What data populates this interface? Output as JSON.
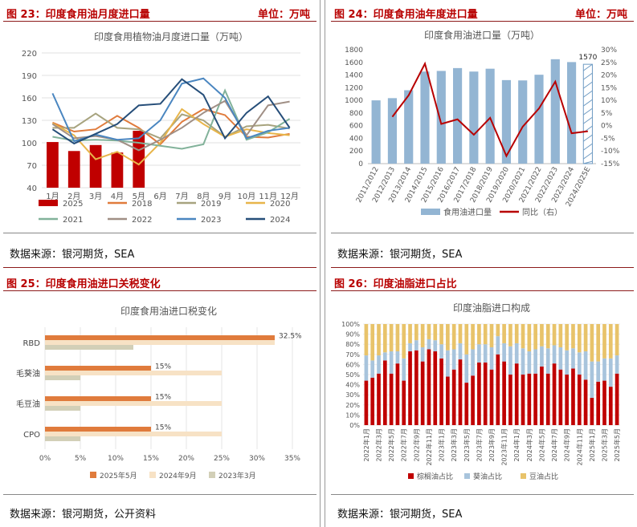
{
  "panels": {
    "p1": {
      "title": "图 23：印度食用油月度进口量",
      "unit": "单位：万吨",
      "source": "数据来源：银河期货，SEA"
    },
    "p2": {
      "title": "图 24：印度食用油年度进口量",
      "unit": "单位：万吨",
      "source": "数据来源：银河期货，SEA"
    },
    "p3": {
      "title": "图 25：印度食用油进口关税变化",
      "source": "数据来源：银河期货，公开资料"
    },
    "p4": {
      "title": "图 26：印度油脂进口占比",
      "source": "数据来源：银河期货，SEA"
    }
  },
  "colors": {
    "accent": "#b80000",
    "border": "#8c1a1a"
  },
  "chart_data": [
    {
      "type": "line",
      "title": "印度食用植物油月度进口量（万吨）",
      "categories": [
        "1月",
        "2月",
        "3月",
        "4月",
        "5月",
        "6月",
        "7月",
        "8月",
        "9月",
        "10月",
        "11月",
        "12月"
      ],
      "ylim": [
        40,
        220
      ],
      "yticks": [
        40,
        70,
        100,
        130,
        160,
        190,
        220
      ],
      "bar_series": {
        "name": "2025",
        "color": "#c00000",
        "values": [
          101,
          89,
          97,
          87,
          116
        ]
      },
      "series": [
        {
          "name": "2018",
          "color": "#e07b3c",
          "values": [
            127,
            115,
            118,
            136,
            120,
            98,
            128,
            145,
            137,
            108,
            107,
            112
          ]
        },
        {
          "name": "2019",
          "color": "#a7a37e",
          "values": [
            120,
            120,
            139,
            120,
            118,
            106,
            138,
            130,
            108,
            122,
            124,
            119
          ]
        },
        {
          "name": "2020",
          "color": "#e8b54a",
          "values": [
            126,
            110,
            78,
            88,
            71,
            100,
            145,
            125,
            108,
            118,
            113,
            110
          ]
        },
        {
          "name": "2021",
          "color": "#82b29a",
          "values": [
            108,
            103,
            104,
            103,
            100,
            96,
            92,
            98,
            170,
            104,
            114,
            132
          ]
        },
        {
          "name": "2022",
          "color": "#a08f85",
          "values": [
            125,
            106,
            109,
            104,
            90,
            104,
            120,
            140,
            156,
            110,
            150,
            155
          ]
        },
        {
          "name": "2023",
          "color": "#4a86c0",
          "values": [
            166,
            102,
            111,
            104,
            106,
            130,
            179,
            186,
            160,
            106,
            116,
            120
          ]
        },
        {
          "name": "2024",
          "color": "#264e79",
          "values": [
            118,
            99,
            112,
            125,
            150,
            152,
            185,
            164,
            106,
            140,
            162,
            120
          ]
        }
      ],
      "legend": [
        "2025",
        "2018",
        "2019",
        "2020",
        "2021",
        "2022",
        "2023",
        "2024"
      ]
    },
    {
      "type": "bar",
      "title": "印度食用油进口量（万吨）",
      "categories": [
        "2011/2012",
        "2012/2013",
        "2013/2014",
        "2014/2015",
        "2015/2016",
        "2016/2017",
        "2017/2018",
        "2018/2019",
        "2019/2020",
        "2020/2021",
        "2021/2022",
        "2022/2023",
        "2023/2024",
        "2024/2025E"
      ],
      "values": [
        1000,
        1035,
        1160,
        1455,
        1465,
        1510,
        1455,
        1500,
        1320,
        1315,
        1405,
        1650,
        1605,
        1570
      ],
      "bar_color": "#93b5d3",
      "ylim": [
        0,
        1800
      ],
      "yticks": [
        0,
        200,
        400,
        600,
        800,
        1000,
        1200,
        1400,
        1600,
        1800
      ],
      "y2lim": [
        -15,
        30
      ],
      "y2ticks": [
        "-15%",
        "-10%",
        "-5%",
        "0%",
        "5%",
        "10%",
        "15%",
        "20%",
        "25%",
        "30%"
      ],
      "line_series": {
        "name": "同比（右）",
        "color": "#b80000",
        "values": [
          null,
          3.5,
          12,
          24.5,
          0.7,
          2.5,
          -3.6,
          3.1,
          -12,
          -0.4,
          6.8,
          17.4,
          -3,
          -2.2
        ]
      },
      "data_label": "1570",
      "legend": [
        "食用油进口量",
        "同比（右）"
      ]
    },
    {
      "type": "bar",
      "orientation": "horizontal",
      "title": "印度食用油进口税变化",
      "categories": [
        "RBD",
        "毛葵油",
        "毛豆油",
        "CPO"
      ],
      "xlim": [
        0,
        35
      ],
      "xticks": [
        "0%",
        "5%",
        "10%",
        "15%",
        "20%",
        "25%",
        "30%",
        "35%"
      ],
      "series": [
        {
          "name": "2025年5月",
          "color": "#e07b3c",
          "values": [
            32.5,
            15,
            15,
            15
          ]
        },
        {
          "name": "2024年9月",
          "color": "#f7e2c5",
          "values": [
            32.5,
            25,
            25,
            25
          ]
        },
        {
          "name": "2023年3月",
          "color": "#d2cfb7",
          "values": [
            12.5,
            5,
            5,
            5
          ]
        }
      ],
      "data_labels": [
        "32.5%",
        "15%",
        "15%",
        "15%"
      ]
    },
    {
      "type": "bar",
      "stacked": true,
      "title": "印度油脂进口构成",
      "categories": [
        "2022年1月",
        "",
        "2022年3月",
        "",
        "2022年5月",
        "",
        "2022年7月",
        "",
        "2022年9月",
        "",
        "2022年11月",
        "",
        "2023年1月",
        "",
        "2023年3月",
        "",
        "2023年5月",
        "",
        "2023年7月",
        "",
        "2023年9月",
        "",
        "2023年11月",
        "",
        "2024年1月",
        "",
        "2024年3月",
        "",
        "2024年5月",
        "",
        "2024年7月",
        "",
        "2024年9月",
        "",
        "2024年11月",
        "",
        "2025年1月",
        "",
        "2025年3月",
        "",
        "2025年5月"
      ],
      "ylim": [
        0,
        100
      ],
      "yticks": [
        "0%",
        "10%",
        "20%",
        "30%",
        "40%",
        "50%",
        "60%",
        "70%",
        "80%",
        "90%",
        "100%"
      ],
      "series": [
        {
          "name": "棕榈油占比",
          "color": "#c00000",
          "values": [
            44,
            47,
            51,
            64,
            51,
            61,
            44,
            73,
            74,
            63,
            75,
            73,
            66,
            48,
            55,
            65,
            42,
            49,
            62,
            62,
            55,
            70,
            63,
            50,
            61,
            50,
            51,
            51,
            58,
            51,
            61,
            55,
            50,
            56,
            50,
            45,
            27,
            43,
            44,
            38,
            51
          ]
        },
        {
          "name": "葵油占比",
          "color": "#a8c4dc",
          "values": [
            25,
            17,
            18,
            8,
            22,
            12,
            22,
            8,
            10,
            14,
            10,
            11,
            14,
            26,
            20,
            16,
            28,
            26,
            18,
            18,
            22,
            18,
            18,
            28,
            20,
            26,
            22,
            24,
            20,
            25,
            18,
            22,
            24,
            20,
            22,
            28,
            36,
            20,
            22,
            28,
            18
          ]
        },
        {
          "name": "豆油占比",
          "color": "#e8c36a",
          "values": [
            31,
            36,
            31,
            28,
            27,
            27,
            34,
            19,
            16,
            23,
            15,
            16,
            20,
            26,
            25,
            19,
            30,
            25,
            20,
            20,
            23,
            12,
            19,
            22,
            19,
            24,
            27,
            25,
            22,
            24,
            21,
            23,
            26,
            24,
            28,
            27,
            37,
            37,
            34,
            34,
            31
          ]
        }
      ]
    }
  ]
}
